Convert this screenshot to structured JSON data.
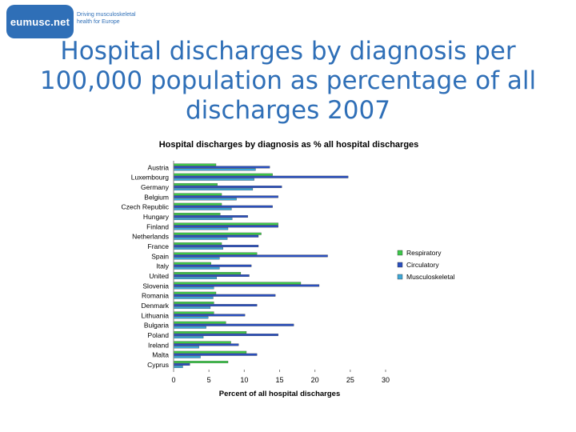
{
  "logo": {
    "text": "eumusc.net",
    "tagline": [
      "Driving musculoskeletal",
      "health for Europe"
    ]
  },
  "slide_title": [
    "Hospital discharges by diagnosis per",
    "100,000 population as percentage of all",
    "discharges 2007"
  ],
  "chart_data": {
    "type": "bar",
    "orientation": "horizontal",
    "title": "Hospital discharges by diagnosis as %  all hospital discharges",
    "xlabel": "Percent of all hospital discharges",
    "ylabel": "",
    "xlim": [
      0,
      30
    ],
    "xticks": [
      0,
      5,
      10,
      15,
      20,
      25,
      30
    ],
    "grid": false,
    "legend_position": "right",
    "categories": [
      "Austria",
      "Luxembourg",
      "Germany",
      "Belgium",
      "Czech Republic",
      "Hungary",
      "Finland",
      "Netherlands",
      "France",
      "Spain",
      "Italy",
      "United",
      "Slovenia",
      "Romania",
      "Denmark",
      "Lithuania",
      "Bulgaria",
      "Poland",
      "Ireland",
      "Malta",
      "Cyprus"
    ],
    "series": [
      {
        "name": "Respiratory",
        "color": "#3cc84a",
        "values": [
          6.0,
          14.0,
          6.2,
          6.8,
          6.8,
          6.6,
          14.8,
          12.4,
          6.8,
          11.8,
          5.3,
          9.5,
          18.0,
          6.0,
          5.7,
          5.7,
          7.4,
          10.3,
          8.1,
          10.3,
          7.7
        ]
      },
      {
        "name": "Circulatory",
        "color": "#2a4fbf",
        "values": [
          13.6,
          24.7,
          15.3,
          14.8,
          14.0,
          10.5,
          14.8,
          12.0,
          12.0,
          21.8,
          11.0,
          10.7,
          20.6,
          14.4,
          11.8,
          10.1,
          17.0,
          14.8,
          9.2,
          11.8,
          2.3
        ]
      },
      {
        "name": "Musculoskeletal",
        "color": "#3ea8d8",
        "values": [
          11.6,
          11.4,
          11.2,
          8.9,
          8.2,
          8.3,
          7.7,
          7.6,
          7.0,
          6.5,
          6.5,
          6.1,
          5.7,
          5.6,
          5.2,
          4.9,
          4.6,
          4.2,
          3.6,
          3.8,
          1.3
        ]
      }
    ]
  }
}
